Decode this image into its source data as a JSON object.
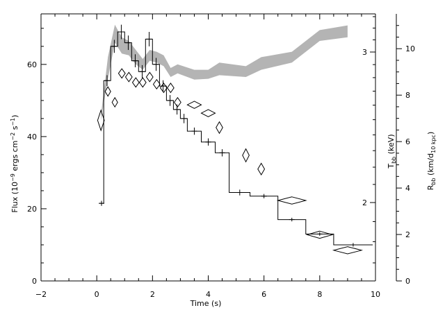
{
  "chart_data": {
    "type": "line",
    "title": "",
    "xlabel": "Time (s)",
    "xlim": [
      -2,
      10
    ],
    "x_ticks": [
      -2,
      0,
      2,
      4,
      6,
      8,
      10
    ],
    "left_axis": {
      "label": "Flux (10⁻⁹ ergs cm⁻² s⁻¹)",
      "ylim": [
        0,
        74
      ],
      "ticks": [
        0,
        20,
        40,
        60
      ]
    },
    "right_axis_inner": {
      "label": "T_bb (keV)",
      "scale": "log",
      "ticks": [
        2,
        3
      ]
    },
    "right_axis_outer": {
      "label": "R_bb (km/d_10 kpc)",
      "ylim": [
        0,
        11.5
      ],
      "ticks": [
        0,
        2,
        4,
        6,
        8,
        10
      ]
    },
    "series": [
      {
        "style": "histogram-step",
        "color": "#000000",
        "bins": [
          {
            "x0": 0.1,
            "x1": 0.25,
            "y": 21.5
          },
          {
            "x0": 0.25,
            "x1": 0.5,
            "y": 55.5
          },
          {
            "x0": 0.5,
            "x1": 0.75,
            "y": 65.0
          },
          {
            "x0": 0.75,
            "x1": 1.0,
            "y": 69.0
          },
          {
            "x0": 1.0,
            "x1": 1.25,
            "y": 66.0
          },
          {
            "x0": 1.25,
            "x1": 1.5,
            "y": 61.0
          },
          {
            "x0": 1.5,
            "x1": 1.75,
            "y": 58.0
          },
          {
            "x0": 1.75,
            "x1": 2.0,
            "y": 67.0
          },
          {
            "x0": 2.0,
            "x1": 2.25,
            "y": 60.0
          },
          {
            "x0": 2.25,
            "x1": 2.5,
            "y": 54.0
          },
          {
            "x0": 2.5,
            "x1": 2.75,
            "y": 50.0
          },
          {
            "x0": 2.75,
            "x1": 3.0,
            "y": 47.5
          },
          {
            "x0": 3.0,
            "x1": 3.25,
            "y": 45.0
          },
          {
            "x0": 3.25,
            "x1": 3.75,
            "y": 41.5
          },
          {
            "x0": 3.75,
            "x1": 4.25,
            "y": 38.5
          },
          {
            "x0": 4.25,
            "x1": 4.75,
            "y": 35.5
          },
          {
            "x0": 4.75,
            "x1": 5.5,
            "y": 24.5
          },
          {
            "x0": 5.5,
            "x1": 6.5,
            "y": 23.5
          },
          {
            "x0": 6.5,
            "x1": 7.5,
            "y": 17.0
          },
          {
            "x0": 7.5,
            "x1": 8.5,
            "y": 13.0
          },
          {
            "x0": 8.5,
            "x1": 9.9,
            "y": 10.0
          }
        ],
        "error_bars": [
          {
            "x": 0.17,
            "y": 21.5,
            "err": 0.7
          },
          {
            "x": 0.37,
            "y": 55.5,
            "err": 1.5
          },
          {
            "x": 0.63,
            "y": 65.0,
            "err": 1.8
          },
          {
            "x": 0.88,
            "y": 69.0,
            "err": 2.0
          },
          {
            "x": 1.13,
            "y": 66.0,
            "err": 2.0
          },
          {
            "x": 1.38,
            "y": 61.0,
            "err": 1.8
          },
          {
            "x": 1.63,
            "y": 58.0,
            "err": 1.8
          },
          {
            "x": 1.88,
            "y": 67.0,
            "err": 2.0
          },
          {
            "x": 2.13,
            "y": 60.0,
            "err": 1.8
          },
          {
            "x": 2.38,
            "y": 54.0,
            "err": 1.6
          },
          {
            "x": 2.63,
            "y": 50.0,
            "err": 1.5
          },
          {
            "x": 2.88,
            "y": 47.5,
            "err": 1.4
          },
          {
            "x": 3.13,
            "y": 45.0,
            "err": 1.3
          },
          {
            "x": 3.5,
            "y": 41.5,
            "err": 1.0
          },
          {
            "x": 4.0,
            "y": 38.5,
            "err": 1.0
          },
          {
            "x": 4.5,
            "y": 35.5,
            "err": 1.0
          },
          {
            "x": 5.13,
            "y": 24.5,
            "err": 0.8
          },
          {
            "x": 6.0,
            "y": 23.5,
            "err": 0.6
          },
          {
            "x": 7.0,
            "y": 17.0,
            "err": 0.5
          },
          {
            "x": 8.0,
            "y": 13.0,
            "err": 0.5
          },
          {
            "x": 9.2,
            "y": 10.0,
            "err": 0.5
          }
        ]
      },
      {
        "style": "diamonds",
        "color": "#000000",
        "points": [
          {
            "x": 0.15,
            "y": 44.5,
            "dx": 0.12,
            "dy": 2.8
          },
          {
            "x": 0.4,
            "y": 52.5,
            "dx": 0.1,
            "dy": 1.3
          },
          {
            "x": 0.65,
            "y": 49.5,
            "dx": 0.1,
            "dy": 1.3
          },
          {
            "x": 0.9,
            "y": 57.5,
            "dx": 0.12,
            "dy": 1.3
          },
          {
            "x": 1.15,
            "y": 56.5,
            "dx": 0.12,
            "dy": 1.3
          },
          {
            "x": 1.4,
            "y": 55.0,
            "dx": 0.12,
            "dy": 1.3
          },
          {
            "x": 1.65,
            "y": 55.0,
            "dx": 0.12,
            "dy": 1.3
          },
          {
            "x": 1.9,
            "y": 56.5,
            "dx": 0.12,
            "dy": 1.3
          },
          {
            "x": 2.15,
            "y": 54.5,
            "dx": 0.12,
            "dy": 1.3
          },
          {
            "x": 2.4,
            "y": 53.5,
            "dx": 0.12,
            "dy": 1.3
          },
          {
            "x": 2.65,
            "y": 53.5,
            "dx": 0.12,
            "dy": 1.3
          },
          {
            "x": 2.9,
            "y": 49.5,
            "dx": 0.12,
            "dy": 1.3
          },
          {
            "x": 3.5,
            "y": 48.8,
            "dx": 0.25,
            "dy": 1.0
          },
          {
            "x": 4.0,
            "y": 46.5,
            "dx": 0.25,
            "dy": 1.0
          },
          {
            "x": 4.4,
            "y": 42.5,
            "dx": 0.12,
            "dy": 1.6
          },
          {
            "x": 5.35,
            "y": 34.8,
            "dx": 0.12,
            "dy": 1.8
          },
          {
            "x": 5.9,
            "y": 31.0,
            "dx": 0.12,
            "dy": 1.6
          },
          {
            "x": 7.0,
            "y": 22.3,
            "dx": 0.5,
            "dy": 1.0
          },
          {
            "x": 8.0,
            "y": 12.8,
            "dx": 0.45,
            "dy": 1.0
          },
          {
            "x": 9.0,
            "y": 8.5,
            "dx": 0.5,
            "dy": 1.0
          }
        ]
      },
      {
        "style": "band",
        "color": "#b4b4b4",
        "upper": [
          {
            "x": 0.15,
            "y": 46.0
          },
          {
            "x": 0.4,
            "y": 62.0
          },
          {
            "x": 0.65,
            "y": 71.0
          },
          {
            "x": 0.9,
            "y": 67.5
          },
          {
            "x": 1.15,
            "y": 66.5
          },
          {
            "x": 1.4,
            "y": 64.0
          },
          {
            "x": 1.65,
            "y": 61.5
          },
          {
            "x": 1.9,
            "y": 64.0
          },
          {
            "x": 2.15,
            "y": 63.5
          },
          {
            "x": 2.4,
            "y": 62.5
          },
          {
            "x": 2.65,
            "y": 59.0
          },
          {
            "x": 2.9,
            "y": 60.0
          },
          {
            "x": 3.5,
            "y": 58.5
          },
          {
            "x": 4.0,
            "y": 58.5
          },
          {
            "x": 4.4,
            "y": 60.5
          },
          {
            "x": 5.35,
            "y": 59.5
          },
          {
            "x": 5.9,
            "y": 62.0
          },
          {
            "x": 7.0,
            "y": 63.5
          },
          {
            "x": 8.0,
            "y": 69.5
          },
          {
            "x": 9.0,
            "y": 70.8
          }
        ],
        "lower": [
          {
            "x": 0.15,
            "y": 44.5
          },
          {
            "x": 0.4,
            "y": 56.0
          },
          {
            "x": 0.65,
            "y": 66.0
          },
          {
            "x": 0.9,
            "y": 63.0
          },
          {
            "x": 1.15,
            "y": 62.5
          },
          {
            "x": 1.4,
            "y": 60.0
          },
          {
            "x": 1.65,
            "y": 58.5
          },
          {
            "x": 1.9,
            "y": 61.0
          },
          {
            "x": 2.15,
            "y": 60.5
          },
          {
            "x": 2.4,
            "y": 59.5
          },
          {
            "x": 2.65,
            "y": 56.5
          },
          {
            "x": 2.9,
            "y": 57.5
          },
          {
            "x": 3.5,
            "y": 55.8
          },
          {
            "x": 4.0,
            "y": 56.0
          },
          {
            "x": 4.4,
            "y": 57.0
          },
          {
            "x": 5.35,
            "y": 56.5
          },
          {
            "x": 5.9,
            "y": 58.5
          },
          {
            "x": 7.0,
            "y": 60.5
          },
          {
            "x": 8.0,
            "y": 66.5
          },
          {
            "x": 9.0,
            "y": 67.5
          }
        ]
      }
    ]
  }
}
